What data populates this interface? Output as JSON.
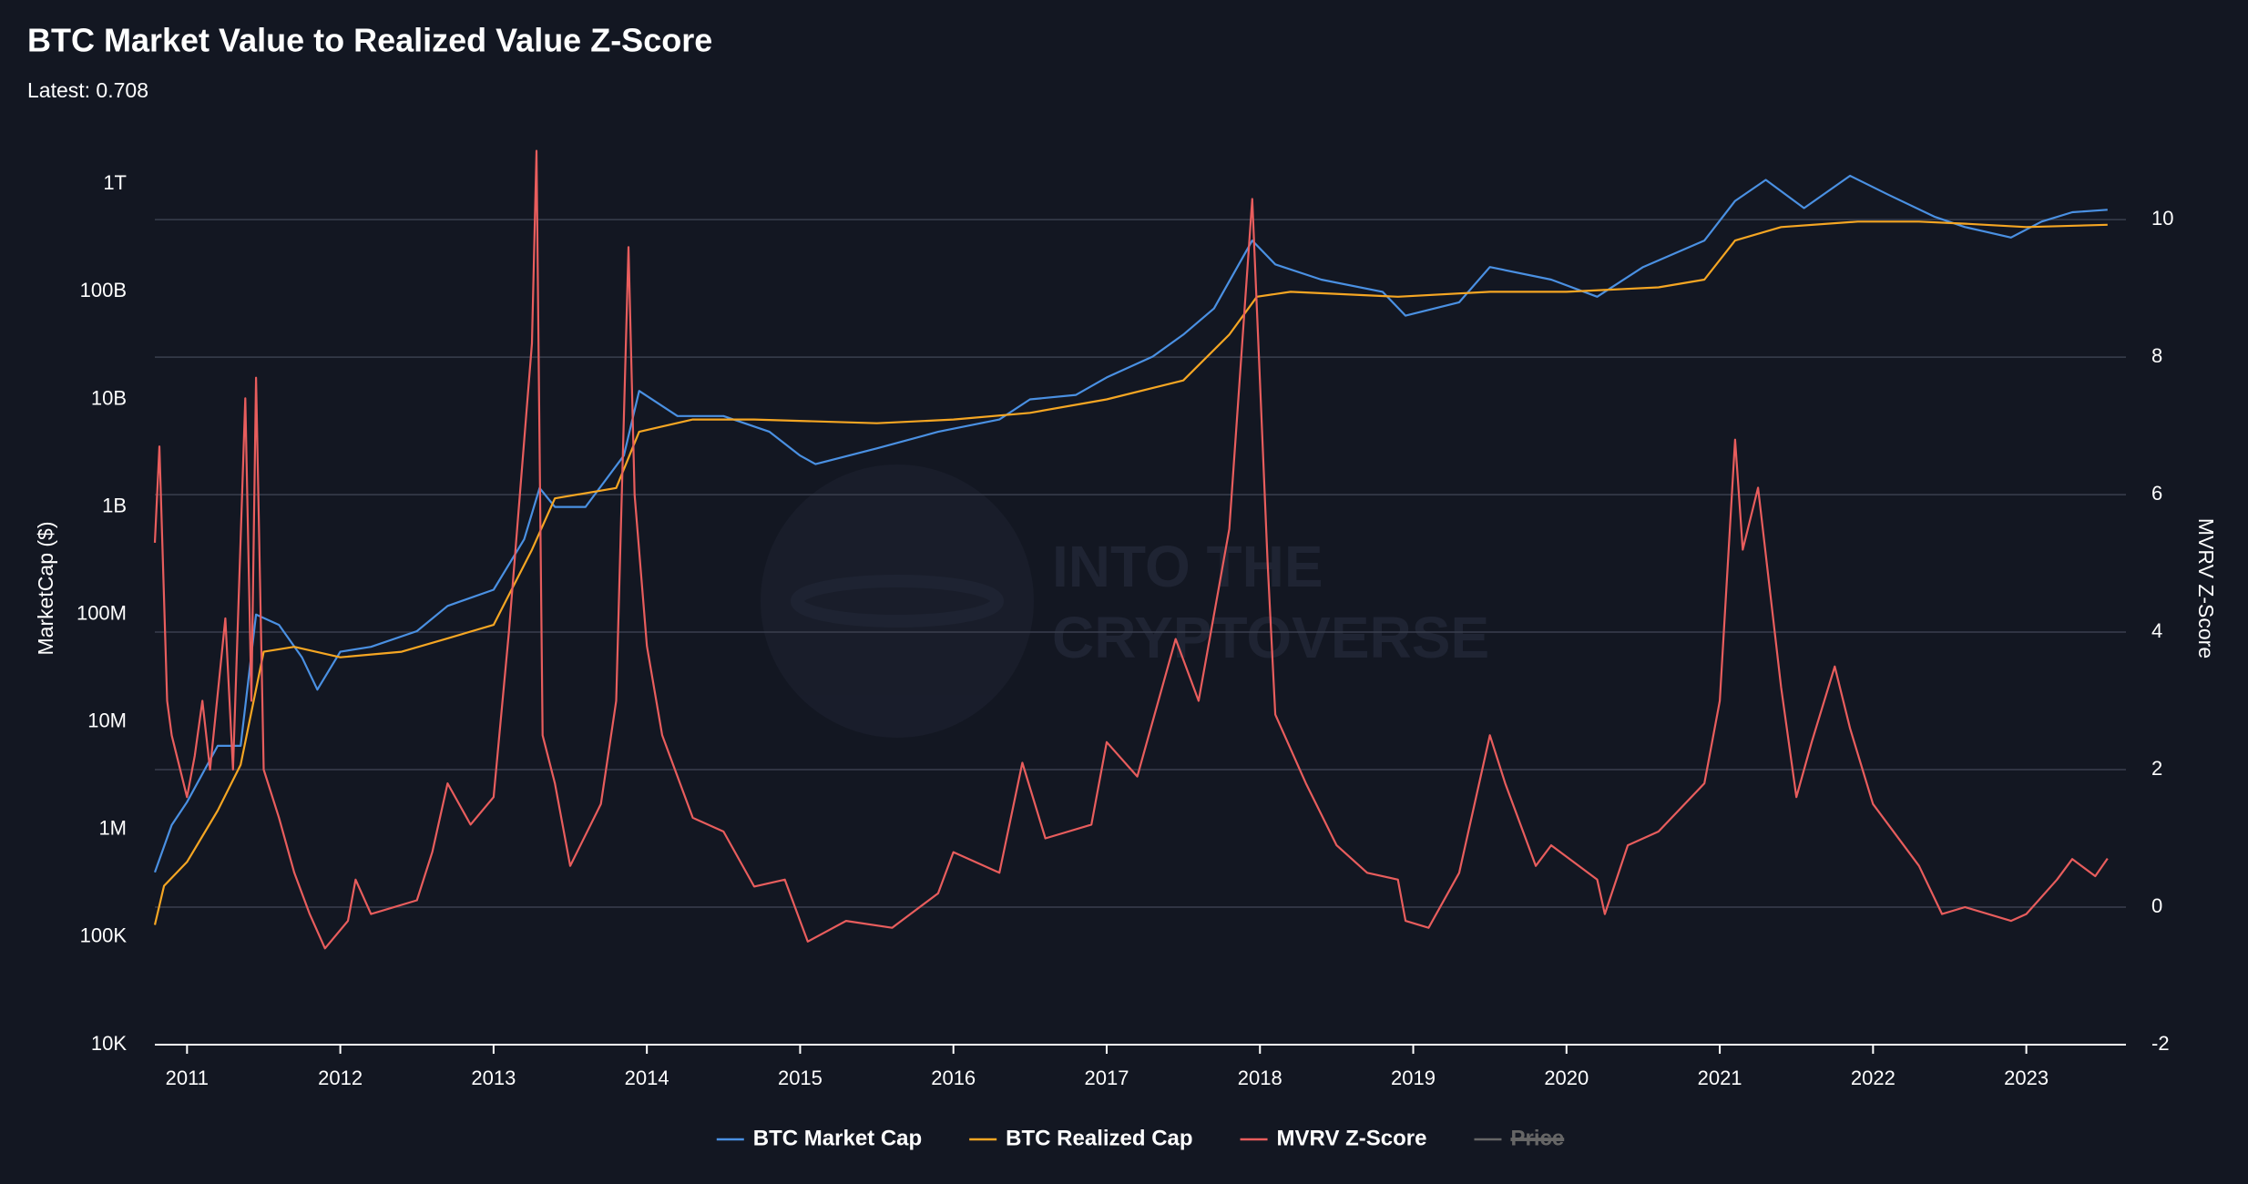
{
  "chart_data": {
    "type": "line",
    "title": "BTC Market Value to Realized Value Z-Score",
    "subtitle": "Latest: 0.708",
    "ylabel": "MarketCap ($)",
    "y2label": "MVRV Z-Score",
    "watermark": [
      "INTO THE",
      "CRYPTOVERSE"
    ],
    "yscale": "log",
    "xlim": [
      2010.79,
      2023.65
    ],
    "xticks": [
      2011,
      2012,
      2013,
      2014,
      2015,
      2016,
      2017,
      2018,
      2019,
      2020,
      2021,
      2022,
      2023
    ],
    "ylim": [
      10000,
      3000000000000
    ],
    "yticks": [
      {
        "value": 10000,
        "label": "10K"
      },
      {
        "value": 100000,
        "label": "100K"
      },
      {
        "value": 1000000,
        "label": "1M"
      },
      {
        "value": 10000000,
        "label": "10M"
      },
      {
        "value": 100000000,
        "label": "100M"
      },
      {
        "value": 1000000000,
        "label": "1B"
      },
      {
        "value": 10000000000,
        "label": "10B"
      },
      {
        "value": 100000000000,
        "label": "100B"
      },
      {
        "value": 1000000000000,
        "label": "1T"
      }
    ],
    "y2lim": [
      -2,
      11.26
    ],
    "y2ticks": [
      -2,
      0,
      2,
      4,
      6,
      8,
      10
    ],
    "grid": true,
    "legend": "bottom",
    "series": [
      {
        "name": "BTC Market Cap",
        "color": "#4a90e2",
        "axis": "y",
        "x": [
          2010.79,
          2010.9,
          2011.0,
          2011.2,
          2011.35,
          2011.45,
          2011.6,
          2011.75,
          2011.85,
          2012.0,
          2012.2,
          2012.5,
          2012.7,
          2013.0,
          2013.2,
          2013.3,
          2013.4,
          2013.6,
          2013.85,
          2013.95,
          2014.2,
          2014.5,
          2014.8,
          2015.0,
          2015.1,
          2015.5,
          2015.9,
          2016.3,
          2016.5,
          2016.8,
          2017.0,
          2017.3,
          2017.5,
          2017.7,
          2017.95,
          2018.1,
          2018.4,
          2018.8,
          2018.95,
          2019.3,
          2019.5,
          2019.9,
          2020.2,
          2020.5,
          2020.9,
          2021.1,
          2021.3,
          2021.55,
          2021.85,
          2022.1,
          2022.4,
          2022.6,
          2022.9,
          2023.1,
          2023.3,
          2023.53
        ],
        "values": [
          400000,
          1100000,
          1800000,
          6000000,
          6000000,
          100000000,
          80000000,
          40000000,
          20000000,
          45000000,
          50000000,
          70000000,
          120000000,
          170000000,
          500000000,
          1500000000,
          1000000000,
          1000000000,
          3000000000,
          12000000000,
          7000000000,
          7000000000,
          5000000000,
          3000000000,
          2500000000,
          3500000000,
          5000000000,
          6500000000,
          10000000000,
          11000000000,
          16000000000,
          25000000000,
          40000000000,
          70000000000,
          300000000000,
          180000000000,
          130000000000,
          100000000000,
          60000000000,
          80000000000,
          170000000000,
          130000000000,
          90000000000,
          170000000000,
          300000000000,
          700000000000,
          1100000000000,
          600000000000,
          1200000000000,
          800000000000,
          500000000000,
          400000000000,
          320000000000,
          450000000000,
          550000000000,
          580000000000
        ]
      },
      {
        "name": "BTC Realized Cap",
        "color": "#f5a623",
        "axis": "y",
        "x": [
          2010.79,
          2010.85,
          2011.0,
          2011.2,
          2011.35,
          2011.5,
          2011.7,
          2012.0,
          2012.4,
          2012.7,
          2013.0,
          2013.25,
          2013.4,
          2013.8,
          2013.95,
          2014.3,
          2014.7,
          2015.5,
          2016.0,
          2016.5,
          2017.0,
          2017.5,
          2017.8,
          2017.98,
          2018.2,
          2018.9,
          2019.5,
          2020.0,
          2020.6,
          2020.9,
          2021.1,
          2021.4,
          2021.9,
          2022.3,
          2022.6,
          2023.0,
          2023.53
        ],
        "values": [
          130000,
          300000,
          500000,
          1500000,
          4000000,
          45000000,
          50000000,
          40000000,
          45000000,
          60000000,
          80000000,
          400000000,
          1200000000,
          1500000000,
          5000000000,
          6500000000,
          6500000000,
          6000000000,
          6500000000,
          7500000000,
          10000000000,
          15000000000,
          40000000000,
          90000000000,
          100000000000,
          90000000000,
          100000000000,
          100000000000,
          110000000000,
          130000000000,
          300000000000,
          400000000000,
          450000000000,
          450000000000,
          430000000000,
          400000000000,
          420000000000
        ]
      },
      {
        "name": "MVRV Z-Score",
        "color": "#e85d5d",
        "axis": "y2",
        "x": [
          2010.79,
          2010.82,
          2010.87,
          2010.9,
          2011.0,
          2011.05,
          2011.1,
          2011.15,
          2011.25,
          2011.3,
          2011.38,
          2011.42,
          2011.45,
          2011.5,
          2011.6,
          2011.7,
          2011.8,
          2011.9,
          2012.05,
          2012.1,
          2012.2,
          2012.5,
          2012.6,
          2012.7,
          2012.85,
          2013.0,
          2013.1,
          2013.25,
          2013.28,
          2013.32,
          2013.4,
          2013.5,
          2013.7,
          2013.8,
          2013.88,
          2013.92,
          2014.0,
          2014.1,
          2014.3,
          2014.5,
          2014.7,
          2014.9,
          2015.05,
          2015.3,
          2015.6,
          2015.9,
          2016.0,
          2016.3,
          2016.45,
          2016.6,
          2016.9,
          2017.0,
          2017.2,
          2017.45,
          2017.6,
          2017.8,
          2017.95,
          2018.05,
          2018.1,
          2018.3,
          2018.5,
          2018.7,
          2018.9,
          2018.95,
          2019.1,
          2019.3,
          2019.5,
          2019.6,
          2019.8,
          2019.9,
          2020.2,
          2020.25,
          2020.4,
          2020.6,
          2020.9,
          2021.0,
          2021.1,
          2021.15,
          2021.25,
          2021.4,
          2021.5,
          2021.6,
          2021.75,
          2021.85,
          2022.0,
          2022.3,
          2022.45,
          2022.6,
          2022.9,
          2023.0,
          2023.2,
          2023.3,
          2023.45,
          2023.53
        ],
        "values": [
          5.3,
          6.7,
          3.0,
          2.5,
          1.6,
          2.2,
          3.0,
          2.0,
          4.2,
          2.0,
          7.4,
          3.0,
          7.7,
          2.0,
          1.3,
          0.5,
          -0.1,
          -0.6,
          -0.2,
          0.4,
          -0.1,
          0.1,
          0.8,
          1.8,
          1.2,
          1.6,
          4,
          8.2,
          11,
          2.5,
          1.8,
          0.6,
          1.5,
          3,
          9.6,
          6,
          3.8,
          2.5,
          1.3,
          1.1,
          0.3,
          0.4,
          -0.5,
          -0.2,
          -0.3,
          0.2,
          0.8,
          0.5,
          2.1,
          1.0,
          1.2,
          2.4,
          1.9,
          3.9,
          3.0,
          5.5,
          10.3,
          5,
          2.8,
          1.8,
          0.9,
          0.5,
          0.4,
          -0.2,
          -0.3,
          0.5,
          2.5,
          1.8,
          0.6,
          0.9,
          0.4,
          -0.1,
          0.9,
          1.1,
          1.8,
          3.0,
          6.8,
          5.2,
          6.1,
          3.2,
          1.6,
          2.4,
          3.5,
          2.6,
          1.5,
          0.6,
          -0.1,
          0.0,
          -0.2,
          -0.1,
          0.4,
          0.7,
          0.45,
          0.708
        ]
      },
      {
        "name": "Price",
        "color": "#666666",
        "visible": false
      }
    ]
  }
}
